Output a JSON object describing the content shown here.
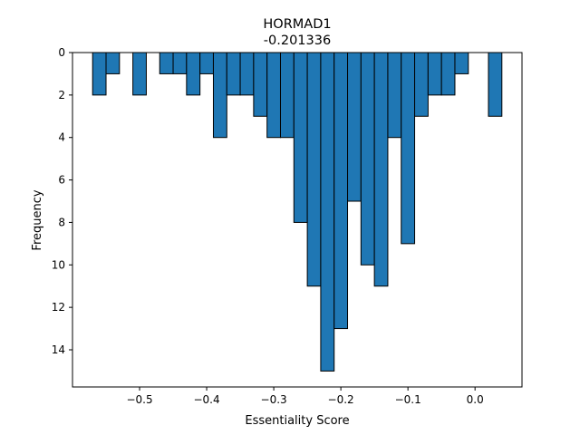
{
  "chart_data": {
    "type": "bar",
    "title": "HORMAD1",
    "subtitle": "-0.201336",
    "xlabel": "Essentiality Score",
    "ylabel": "Frequency",
    "y_inverted": true,
    "xlim": [
      -0.6,
      0.07
    ],
    "ylim": [
      0,
      15.75
    ],
    "bin_width": 0.02,
    "bars": [
      {
        "x0": -0.57,
        "x1": -0.55,
        "count": 2
      },
      {
        "x0": -0.55,
        "x1": -0.53,
        "count": 1
      },
      {
        "x0": -0.51,
        "x1": -0.49,
        "count": 2
      },
      {
        "x0": -0.47,
        "x1": -0.45,
        "count": 1
      },
      {
        "x0": -0.45,
        "x1": -0.43,
        "count": 1
      },
      {
        "x0": -0.43,
        "x1": -0.41,
        "count": 2
      },
      {
        "x0": -0.41,
        "x1": -0.39,
        "count": 1
      },
      {
        "x0": -0.39,
        "x1": -0.37,
        "count": 4
      },
      {
        "x0": -0.37,
        "x1": -0.35,
        "count": 2
      },
      {
        "x0": -0.35,
        "x1": -0.33,
        "count": 2
      },
      {
        "x0": -0.33,
        "x1": -0.31,
        "count": 3
      },
      {
        "x0": -0.31,
        "x1": -0.29,
        "count": 4
      },
      {
        "x0": -0.29,
        "x1": -0.27,
        "count": 4
      },
      {
        "x0": -0.27,
        "x1": -0.25,
        "count": 8
      },
      {
        "x0": -0.25,
        "x1": -0.23,
        "count": 11
      },
      {
        "x0": -0.23,
        "x1": -0.21,
        "count": 15
      },
      {
        "x0": -0.21,
        "x1": -0.19,
        "count": 13
      },
      {
        "x0": -0.19,
        "x1": -0.17,
        "count": 7
      },
      {
        "x0": -0.17,
        "x1": -0.15,
        "count": 10
      },
      {
        "x0": -0.15,
        "x1": -0.13,
        "count": 11
      },
      {
        "x0": -0.13,
        "x1": -0.11,
        "count": 4
      },
      {
        "x0": -0.11,
        "x1": -0.09,
        "count": 9
      },
      {
        "x0": -0.09,
        "x1": -0.07,
        "count": 3
      },
      {
        "x0": -0.07,
        "x1": -0.05,
        "count": 2
      },
      {
        "x0": -0.05,
        "x1": -0.03,
        "count": 2
      },
      {
        "x0": -0.03,
        "x1": -0.01,
        "count": 1
      },
      {
        "x0": 0.01,
        "x1": 0.03,
        "count": 0
      },
      {
        "x0": 0.02,
        "x1": 0.04,
        "count": 3
      }
    ],
    "x_ticks": [
      {
        "value": -0.5,
        "label": "−0.5"
      },
      {
        "value": -0.4,
        "label": "−0.4"
      },
      {
        "value": -0.3,
        "label": "−0.3"
      },
      {
        "value": -0.2,
        "label": "−0.2"
      },
      {
        "value": -0.1,
        "label": "−0.1"
      },
      {
        "value": 0.0,
        "label": "0.0"
      }
    ],
    "y_ticks": [
      {
        "value": 0,
        "label": "0"
      },
      {
        "value": 2,
        "label": "2"
      },
      {
        "value": 4,
        "label": "4"
      },
      {
        "value": 6,
        "label": "6"
      },
      {
        "value": 8,
        "label": "8"
      },
      {
        "value": 10,
        "label": "10"
      },
      {
        "value": 12,
        "label": "12"
      },
      {
        "value": 14,
        "label": "14"
      }
    ],
    "bar_color": "#1f77b4",
    "edge_color": "#000000",
    "grid": false,
    "legend": "none"
  }
}
